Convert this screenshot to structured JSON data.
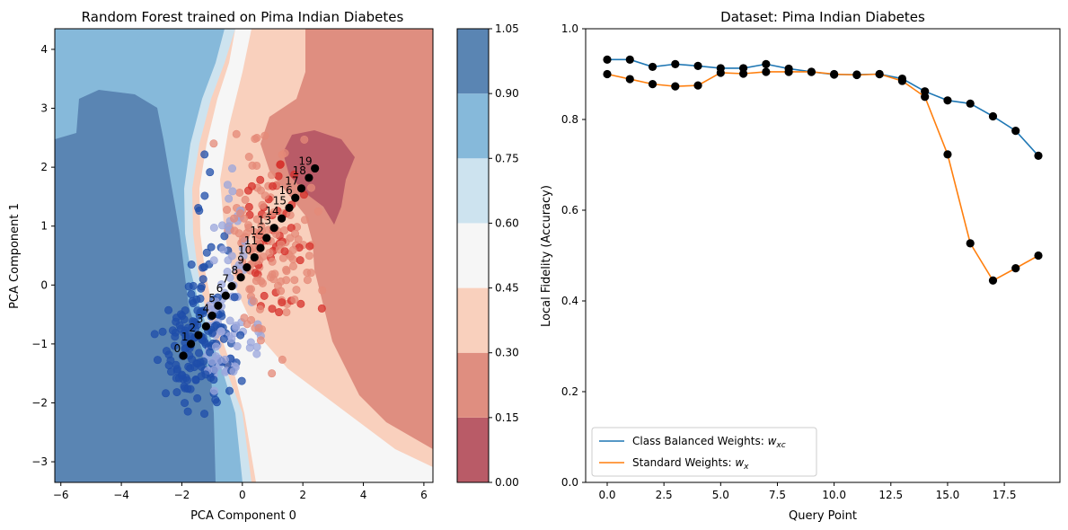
{
  "chart_data": [
    {
      "type": "scatter",
      "title": "Random Forest trained on Pima Indian Diabetes",
      "xlabel": "PCA Component 0",
      "ylabel": "PCA Component 1",
      "xlim": [
        -6.2,
        6.3
      ],
      "ylim": [
        -3.35,
        4.35
      ],
      "xticks": [
        -6,
        -4,
        -2,
        0,
        2,
        4,
        6
      ],
      "yticks": [
        -3,
        -2,
        -1,
        0,
        1,
        2,
        3,
        4
      ],
      "background": "filled contour of predicted class probability (RdBu colormap), dark blue region on left, red region on right",
      "colorbar": {
        "levels": [
          0.0,
          0.15,
          0.3,
          0.45,
          0.6,
          0.75,
          0.9,
          1.05
        ],
        "tick_labels": [
          "0.00",
          "0.15",
          "0.30",
          "0.45",
          "0.60",
          "0.75",
          "0.90",
          "1.05"
        ],
        "colors": [
          "#b95b67",
          "#df8e80",
          "#f9d0bd",
          "#f6f6f6",
          "#cde3ef",
          "#86b9da",
          "#5a85b3"
        ]
      },
      "query_points": {
        "labels": [
          "0",
          "1",
          "2",
          "3",
          "4",
          "5",
          "6",
          "7",
          "8",
          "9",
          "10",
          "11",
          "12",
          "13",
          "14",
          "15",
          "16",
          "17",
          "18",
          "19"
        ],
        "x": [
          -1.95,
          -1.7,
          -1.45,
          -1.2,
          -1.0,
          -0.8,
          -0.55,
          -0.35,
          -0.05,
          0.15,
          0.4,
          0.6,
          0.8,
          1.05,
          1.3,
          1.55,
          1.75,
          1.95,
          2.2,
          2.4
        ],
        "y": [
          -1.2,
          -1.0,
          -0.85,
          -0.7,
          -0.52,
          -0.35,
          -0.18,
          -0.02,
          0.13,
          0.3,
          0.47,
          0.63,
          0.8,
          0.97,
          1.13,
          1.31,
          1.48,
          1.64,
          1.82,
          1.98
        ]
      },
      "data_point_colors": {
        "class_0": "#1f4eaa",
        "class_1": "#d6302b",
        "mixed_low": "#9aa6dc",
        "mixed_high": "#e48a78"
      }
    },
    {
      "type": "line",
      "title": "Dataset: Pima Indian Diabetes",
      "xlabel": "Query Point",
      "ylabel": "Local Fidelity (Accuracy)",
      "xlim": [
        -0.95,
        19.95
      ],
      "ylim": [
        0.0,
        1.0
      ],
      "xticks": [
        "0.0",
        "2.5",
        "5.0",
        "7.5",
        "10.0",
        "12.5",
        "15.0",
        "17.5"
      ],
      "yticks": [
        "0.0",
        "0.2",
        "0.4",
        "0.6",
        "0.8",
        "1.0"
      ],
      "x": [
        0,
        1,
        2,
        3,
        4,
        5,
        6,
        7,
        8,
        9,
        10,
        11,
        12,
        13,
        14,
        15,
        16,
        17,
        18,
        19
      ],
      "series": [
        {
          "name": "Class Balanced Weights: ",
          "math": "w_xc",
          "color": "#1f77b4",
          "values": [
            0.932,
            0.932,
            0.916,
            0.922,
            0.918,
            0.913,
            0.913,
            0.922,
            0.912,
            0.905,
            0.899,
            0.899,
            0.9,
            0.89,
            0.862,
            0.842,
            0.835,
            0.807,
            0.775,
            0.72
          ]
        },
        {
          "name": "Standard Weights: ",
          "math": "w_x",
          "color": "#ff7f0e",
          "values": [
            0.9,
            0.889,
            0.878,
            0.873,
            0.875,
            0.903,
            0.901,
            0.905,
            0.905,
            0.905,
            0.9,
            0.898,
            0.9,
            0.885,
            0.85,
            0.723,
            0.527,
            0.445,
            0.472,
            0.5
          ]
        }
      ],
      "legend": "lower-left"
    }
  ]
}
